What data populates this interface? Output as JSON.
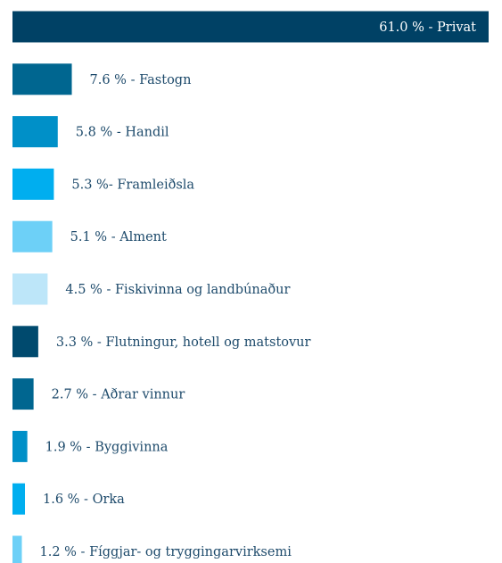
{
  "chart_data": {
    "type": "hbar",
    "values": [
      61.0,
      7.6,
      5.8,
      5.3,
      5.1,
      4.5,
      3.3,
      2.7,
      1.9,
      1.6,
      1.2
    ],
    "value_labels": [
      "61.0 % - Privat",
      "7.6 % - Fastogn",
      "5.8 % - Handil",
      "5.3 %- Framleiðsla",
      "5.1 % - Alment",
      "4.5 % - Fiskivinna og landbúnaður",
      "3.3 % - Flutningur, hotell og matstovur",
      "2.7 % - Aðrar vinnur",
      "1.9 % - Byggivinna",
      "1.6 % - Orka",
      "1.2 % - Fíggjar- og tryggingarvirksemi"
    ],
    "colors": [
      "#004165",
      "#006690",
      "#0090c8",
      "#00aeef",
      "#6dd0f7",
      "#bde6f9",
      "#004a6e",
      "#006690",
      "#0090c8",
      "#00aeef",
      "#6dd0f7"
    ]
  }
}
